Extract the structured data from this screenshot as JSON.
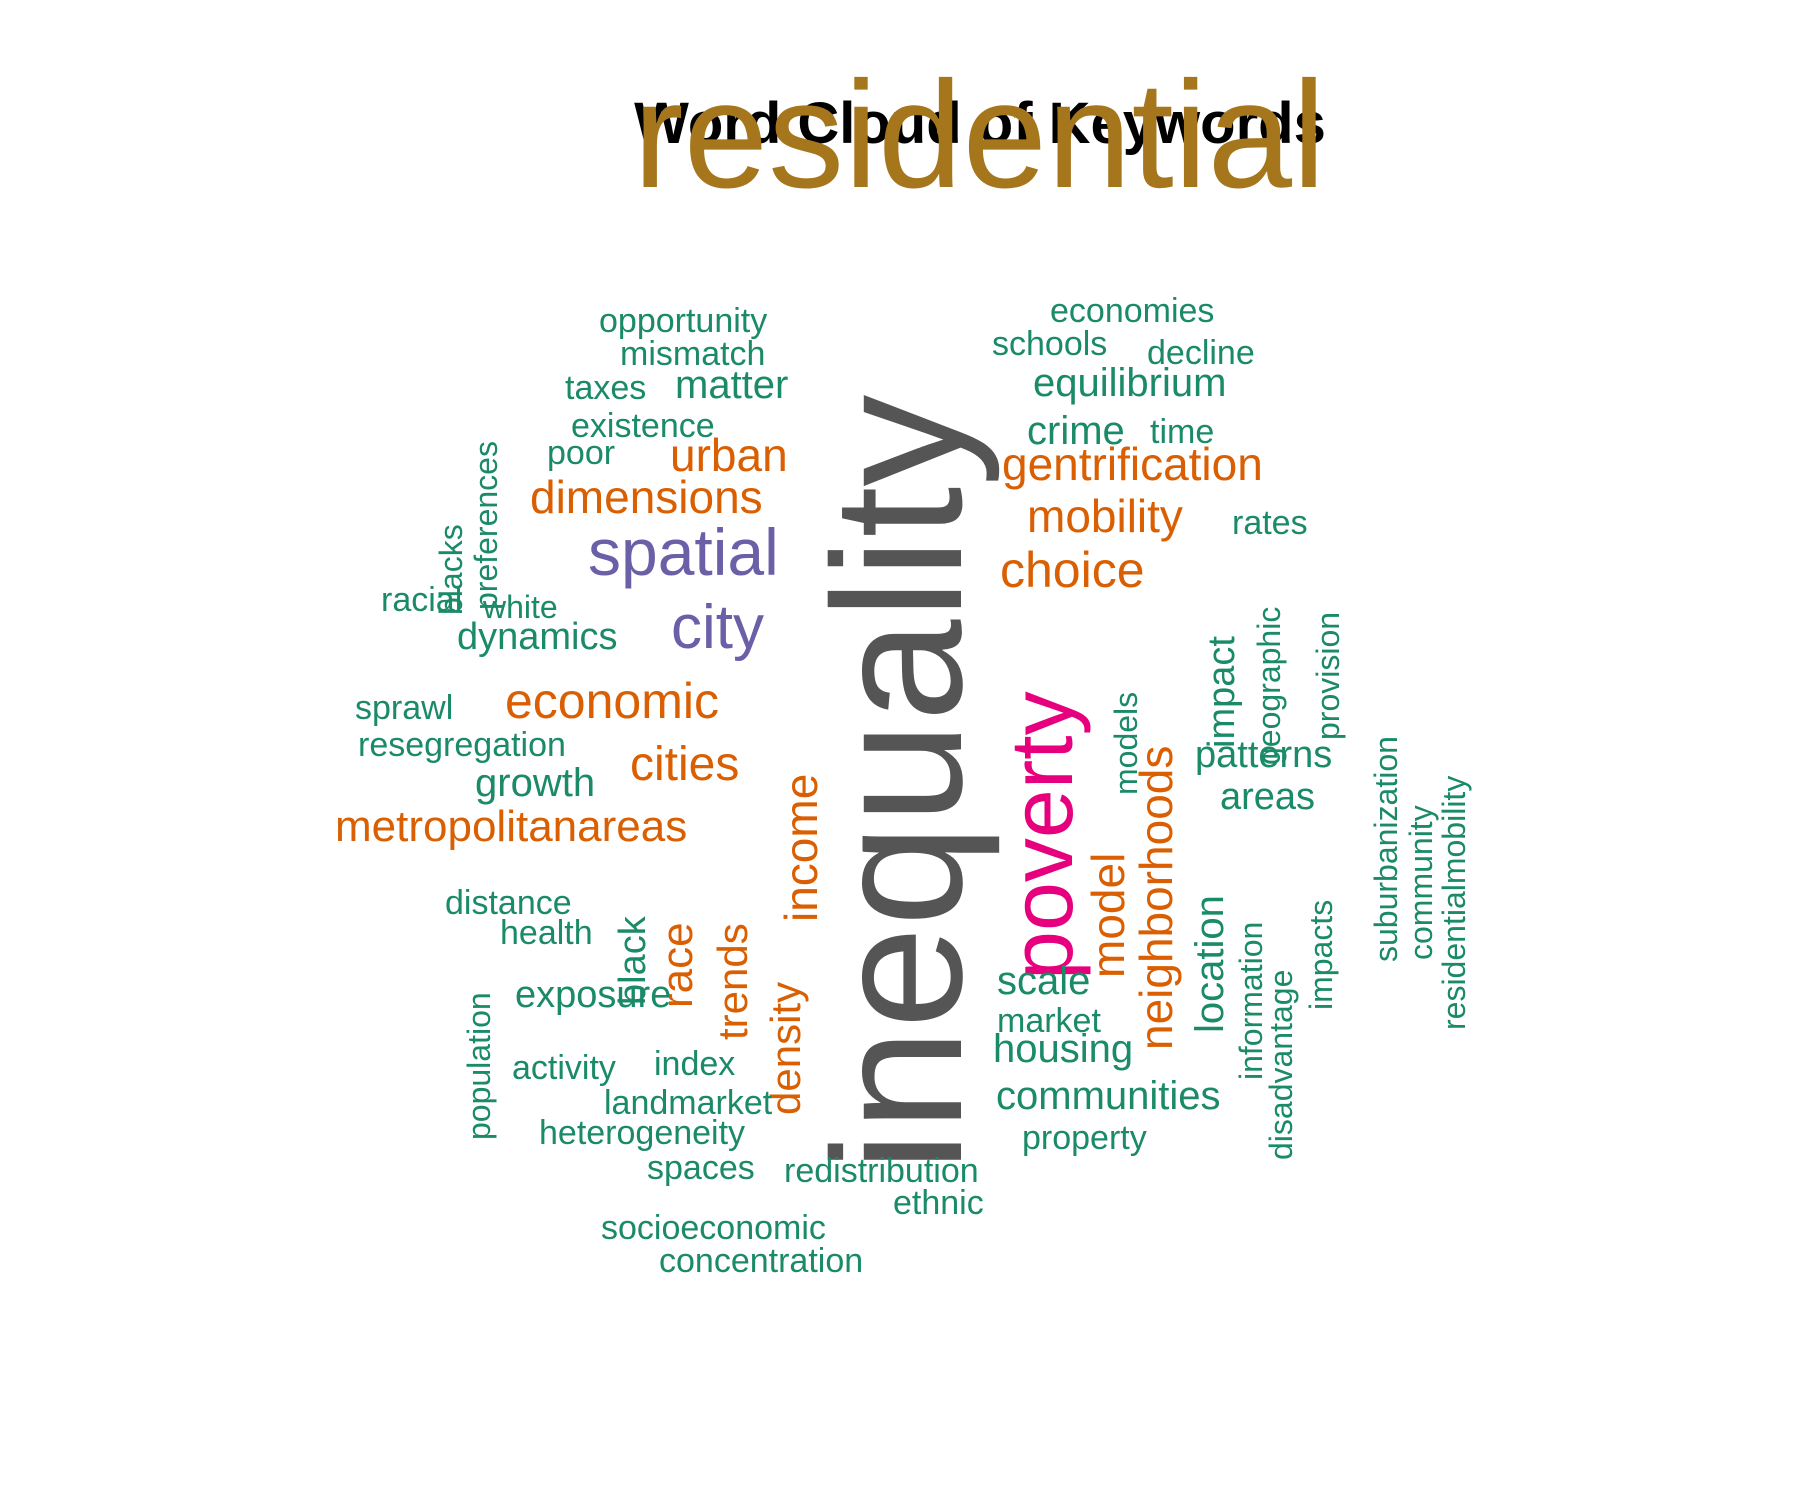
{
  "title": "Word Cloud of Keywords",
  "palette": {
    "brown": "#a6761d",
    "gray": "#555555",
    "purple": "#6a60a8",
    "magenta": "#e6007e",
    "orange": "#d95f02",
    "green": "#1b8a68"
  },
  "words": [
    {
      "text": "residential",
      "color": "brown"
    },
    {
      "text": "inequality",
      "color": "gray"
    },
    {
      "text": "poverty",
      "color": "magenta"
    },
    {
      "text": "spatial",
      "color": "purple"
    },
    {
      "text": "city",
      "color": "purple"
    },
    {
      "text": "economic",
      "color": "orange"
    },
    {
      "text": "cities",
      "color": "orange"
    },
    {
      "text": "metropolitanareas",
      "color": "orange"
    },
    {
      "text": "income",
      "color": "orange"
    },
    {
      "text": "neighborhoods",
      "color": "orange"
    },
    {
      "text": "choice",
      "color": "orange"
    },
    {
      "text": "gentrification",
      "color": "orange"
    },
    {
      "text": "mobility",
      "color": "orange"
    },
    {
      "text": "urban",
      "color": "orange"
    },
    {
      "text": "dimensions",
      "color": "orange"
    },
    {
      "text": "model",
      "color": "orange"
    },
    {
      "text": "race",
      "color": "orange"
    },
    {
      "text": "trends",
      "color": "orange"
    },
    {
      "text": "density",
      "color": "orange"
    },
    {
      "text": "opportunity",
      "color": "green"
    },
    {
      "text": "mismatch",
      "color": "green"
    },
    {
      "text": "taxes",
      "color": "green"
    },
    {
      "text": "matter",
      "color": "green"
    },
    {
      "text": "existence",
      "color": "green"
    },
    {
      "text": "poor",
      "color": "green"
    },
    {
      "text": "economies",
      "color": "green"
    },
    {
      "text": "schools",
      "color": "green"
    },
    {
      "text": "decline",
      "color": "green"
    },
    {
      "text": "equilibrium",
      "color": "green"
    },
    {
      "text": "crime",
      "color": "green"
    },
    {
      "text": "time",
      "color": "green"
    },
    {
      "text": "rates",
      "color": "green"
    },
    {
      "text": "preferences",
      "color": "green"
    },
    {
      "text": "blacks",
      "color": "green"
    },
    {
      "text": "racial",
      "color": "green"
    },
    {
      "text": "white",
      "color": "green"
    },
    {
      "text": "dynamics",
      "color": "green"
    },
    {
      "text": "sprawl",
      "color": "green"
    },
    {
      "text": "resegregation",
      "color": "green"
    },
    {
      "text": "growth",
      "color": "green"
    },
    {
      "text": "impact",
      "color": "green"
    },
    {
      "text": "geographic",
      "color": "green"
    },
    {
      "text": "provision",
      "color": "green"
    },
    {
      "text": "models",
      "color": "green"
    },
    {
      "text": "patterns",
      "color": "green"
    },
    {
      "text": "areas",
      "color": "green"
    },
    {
      "text": "suburbanization",
      "color": "green"
    },
    {
      "text": "community",
      "color": "green"
    },
    {
      "text": "residentialmobility",
      "color": "green"
    },
    {
      "text": "distance",
      "color": "green"
    },
    {
      "text": "health",
      "color": "green"
    },
    {
      "text": "black",
      "color": "green"
    },
    {
      "text": "population",
      "color": "green"
    },
    {
      "text": "exposure",
      "color": "green"
    },
    {
      "text": "location",
      "color": "green"
    },
    {
      "text": "information",
      "color": "green"
    },
    {
      "text": "disadvantage",
      "color": "green"
    },
    {
      "text": "impacts",
      "color": "green"
    },
    {
      "text": "scale",
      "color": "green"
    },
    {
      "text": "market",
      "color": "green"
    },
    {
      "text": "housing",
      "color": "green"
    },
    {
      "text": "communities",
      "color": "green"
    },
    {
      "text": "property",
      "color": "green"
    },
    {
      "text": "activity",
      "color": "green"
    },
    {
      "text": "index",
      "color": "green"
    },
    {
      "text": "landmarket",
      "color": "green"
    },
    {
      "text": "heterogeneity",
      "color": "green"
    },
    {
      "text": "spaces",
      "color": "green"
    },
    {
      "text": "redistribution",
      "color": "green"
    },
    {
      "text": "ethnic",
      "color": "green"
    },
    {
      "text": "socioeconomic",
      "color": "green"
    },
    {
      "text": "concentration",
      "color": "green"
    }
  ]
}
